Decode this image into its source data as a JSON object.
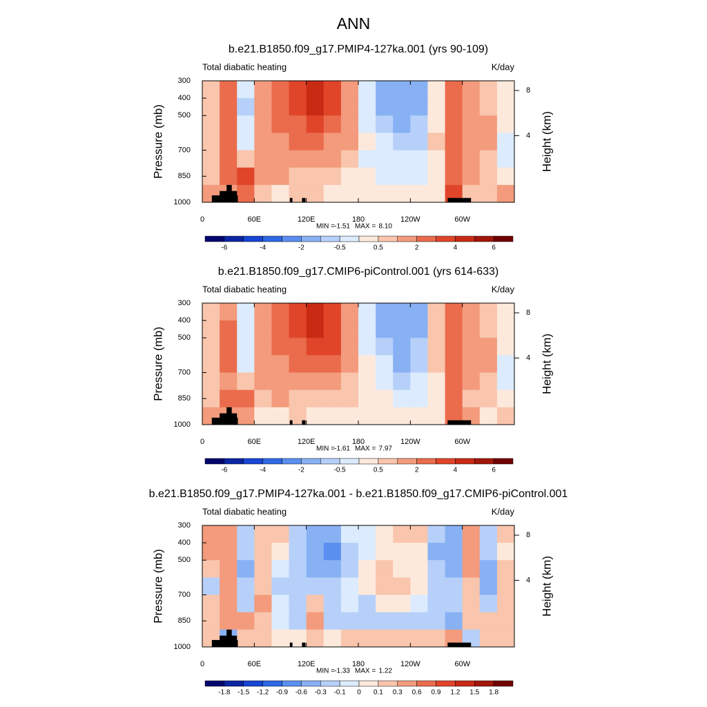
{
  "title": "ANN",
  "chart_data": [
    {
      "type": "contour",
      "title": "b.e21.B1850.f09_g17.PMIP4-127ka.001 (yrs 90-109)",
      "left_label": "Total diabatic heating",
      "right_label": "K/day",
      "ylabel": "Pressure (mb)",
      "y2label": "Height (km)",
      "xlim": [
        0,
        360
      ],
      "ylim": [
        1000,
        300
      ],
      "xticks": [
        0,
        {
          "value": 60,
          "label": "60E"
        },
        {
          "value": 120,
          "label": "120E"
        },
        180,
        {
          "value": 240,
          "label": "120W"
        },
        {
          "value": 300,
          "label": "60W"
        }
      ],
      "yticks": [
        300,
        400,
        500,
        700,
        850,
        1000
      ],
      "y2ticks": [
        4,
        8
      ],
      "lon_edges": [
        0,
        20,
        40,
        60,
        80,
        100,
        120,
        140,
        160,
        180,
        200,
        220,
        240,
        260,
        280,
        300,
        320,
        340,
        360
      ],
      "p_edges": [
        300,
        400,
        500,
        600,
        700,
        800,
        900,
        1000
      ],
      "values": [
        [
          0.7,
          2.2,
          -0.3,
          1.5,
          2.2,
          3,
          4,
          3,
          1.5,
          -0.3,
          -1.2,
          -1.3,
          -1.2,
          0.3,
          2.5,
          1.5,
          0.7,
          0.2
        ],
        [
          0.8,
          2.5,
          -0.6,
          1.8,
          2.5,
          3,
          4.2,
          3.2,
          1.5,
          -0.2,
          -1.3,
          -1.5,
          -1.3,
          0.4,
          2.6,
          1.7,
          0.8,
          0.3
        ],
        [
          0.8,
          2.5,
          -0.5,
          1.7,
          2.2,
          2.5,
          3.5,
          2.5,
          1.2,
          -0.2,
          -0.8,
          -1.2,
          -1,
          0.4,
          2.5,
          1.7,
          1,
          0.3
        ],
        [
          0.7,
          2.2,
          -0.3,
          1.5,
          1.7,
          2,
          2.5,
          1.8,
          1,
          0,
          -0.5,
          -1,
          -0.8,
          0.5,
          2.2,
          1.5,
          1,
          -0.2
        ],
        [
          0.6,
          2,
          0.5,
          1.5,
          1.5,
          1.5,
          1.5,
          1,
          0.6,
          -0.2,
          -0.5,
          -0.5,
          -0.5,
          0.3,
          2,
          1.2,
          0.8,
          -0.3
        ],
        [
          0.8,
          2.2,
          3,
          1,
          1,
          0.6,
          0.7,
          0.5,
          0.4,
          0,
          -0.2,
          -0.3,
          -0.3,
          0,
          2.5,
          1,
          0.6,
          0.3
        ],
        [
          1.5,
          1.2,
          2,
          0.5,
          0.4,
          0.6,
          0.5,
          0.3,
          0.3,
          0.2,
          0.2,
          0.2,
          0.3,
          0.3,
          3,
          0.8,
          0.5,
          1
        ]
      ],
      "stats": {
        "min_label": "MIN =",
        "min": -1.51,
        "max_label": "MAX =",
        "max": {
          "value": 8.1,
          "label": "8.10"
        }
      },
      "colorbar": {
        "levels": [
          -6,
          -5,
          -4,
          -3,
          -2,
          -1,
          -0.5,
          0,
          0.5,
          1,
          2,
          3,
          4,
          5,
          6
        ],
        "label_step": 2,
        "colors": [
          "#03066e",
          "#0b25a3",
          "#1745d4",
          "#2e68e6",
          "#5a8ff0",
          "#88b1f4",
          "#b6d0fa",
          "#dcebfd",
          "#fde9dc",
          "#f9c5ad",
          "#f39b7c",
          "#ea6c4d",
          "#e0452a",
          "#c82a14",
          "#a2160a",
          "#720000"
        ]
      }
    },
    {
      "type": "contour",
      "title": "b.e21.B1850.f09_g17.CMIP6-piControl.001 (yrs 614-633)",
      "left_label": "Total diabatic heating",
      "right_label": "K/day",
      "ylabel": "Pressure (mb)",
      "y2label": "Height (km)",
      "xlim": [
        0,
        360
      ],
      "ylim": [
        1000,
        300
      ],
      "xticks": [
        0,
        {
          "value": 60,
          "label": "60E"
        },
        {
          "value": 120,
          "label": "120E"
        },
        180,
        {
          "value": 240,
          "label": "120W"
        },
        {
          "value": 300,
          "label": "60W"
        }
      ],
      "yticks": [
        300,
        400,
        500,
        700,
        850,
        1000
      ],
      "y2ticks": [
        4,
        8
      ],
      "lon_edges": [
        0,
        20,
        40,
        60,
        80,
        100,
        120,
        140,
        160,
        180,
        200,
        220,
        240,
        260,
        280,
        300,
        320,
        340,
        360
      ],
      "p_edges": [
        300,
        400,
        500,
        600,
        700,
        800,
        900,
        1000
      ],
      "values": [
        [
          0.5,
          1.8,
          -0.2,
          1.3,
          2.2,
          3.2,
          4.2,
          3.3,
          1.4,
          -0.3,
          -1.2,
          -1.3,
          -1.2,
          0.5,
          2.7,
          1.3,
          0.8,
          0.2
        ],
        [
          0.5,
          2,
          -0.4,
          1.6,
          2.5,
          3.3,
          4.5,
          3.8,
          1.5,
          -0.2,
          -1.3,
          -1.5,
          -1.3,
          0.6,
          2.8,
          1.5,
          0.9,
          0.3
        ],
        [
          0.6,
          2.1,
          -0.3,
          1.6,
          2.2,
          2.8,
          3.8,
          3,
          1.3,
          -0.2,
          -0.9,
          -1.3,
          -1,
          0.6,
          2.6,
          1.5,
          1.1,
          0.3
        ],
        [
          0.8,
          2,
          -0.2,
          1.4,
          1.8,
          2.2,
          2.8,
          2.2,
          1,
          0,
          -0.5,
          -1.1,
          -0.9,
          0.6,
          2.4,
          1.4,
          1.2,
          -0.3
        ],
        [
          0.5,
          1.6,
          0.6,
          1.3,
          1.6,
          1.6,
          1.4,
          1.2,
          0.7,
          0,
          -0.5,
          -0.6,
          -0.5,
          0.4,
          2.2,
          1.2,
          0.9,
          -0.4
        ],
        [
          0.6,
          2,
          2.8,
          0.9,
          1,
          0.7,
          0.5,
          0.6,
          0.6,
          0.2,
          0,
          -0.2,
          -0.2,
          0.2,
          2.8,
          0.9,
          0.5,
          0.2
        ],
        [
          1.3,
          1.6,
          1.9,
          0.4,
          0.4,
          0.6,
          0.3,
          0.3,
          0.2,
          0.1,
          0.1,
          0.1,
          0.2,
          0.2,
          2.8,
          1,
          0.4,
          0.9
        ]
      ],
      "stats": {
        "min_label": "MIN =",
        "min": -1.61,
        "max_label": "MAX =",
        "max": 7.97
      },
      "colorbar": {
        "levels": [
          -6,
          -5,
          -4,
          -3,
          -2,
          -1,
          -0.5,
          0,
          0.5,
          1,
          2,
          3,
          4,
          5,
          6
        ],
        "label_step": 2,
        "colors": [
          "#03066e",
          "#0b25a3",
          "#1745d4",
          "#2e68e6",
          "#5a8ff0",
          "#88b1f4",
          "#b6d0fa",
          "#dcebfd",
          "#fde9dc",
          "#f9c5ad",
          "#f39b7c",
          "#ea6c4d",
          "#e0452a",
          "#c82a14",
          "#a2160a",
          "#720000"
        ]
      }
    },
    {
      "type": "contour",
      "title": "b.e21.B1850.f09_g17.PMIP4-127ka.001 - b.e21.B1850.f09_g17.CMIP6-piControl.001",
      "left_label": "Total diabatic heating",
      "right_label": "K/day",
      "ylabel": "Pressure (mb)",
      "y2label": "Height (km)",
      "xlim": [
        0,
        360
      ],
      "ylim": [
        1000,
        300
      ],
      "xticks": [
        0,
        {
          "value": 60,
          "label": "60E"
        },
        {
          "value": 120,
          "label": "120E"
        },
        180,
        {
          "value": 240,
          "label": "120W"
        },
        {
          "value": 300,
          "label": "60W"
        }
      ],
      "yticks": [
        300,
        400,
        500,
        700,
        850,
        1000
      ],
      "y2ticks": [
        4,
        8
      ],
      "lon_edges": [
        0,
        20,
        40,
        60,
        80,
        100,
        120,
        140,
        160,
        180,
        200,
        220,
        240,
        260,
        280,
        300,
        320,
        340,
        360
      ],
      "p_edges": [
        300,
        400,
        500,
        600,
        700,
        800,
        900,
        1000
      ],
      "values": [
        [
          0.3,
          0.5,
          -0.2,
          0.2,
          0.1,
          -0.3,
          -0.5,
          -0.6,
          -0.1,
          -0.1,
          0,
          0.1,
          0.1,
          -0.3,
          -0.4,
          0.3,
          -0.2,
          0.1
        ],
        [
          0.4,
          0.5,
          -0.3,
          0.1,
          0,
          -0.3,
          -0.6,
          -0.9,
          -0.2,
          -0.1,
          0,
          0,
          0,
          -0.4,
          -0.5,
          0.4,
          -0.3,
          0
        ],
        [
          0.2,
          0.4,
          -0.4,
          0.1,
          -0.1,
          -0.3,
          -0.4,
          -0.6,
          -0.2,
          0,
          0.1,
          0,
          0,
          -0.3,
          -0.4,
          0.3,
          -0.4,
          0.1
        ],
        [
          -0.3,
          0.3,
          -0.2,
          0.2,
          -0.2,
          -0.2,
          -0.3,
          -0.3,
          -0.1,
          0,
          0.1,
          0.1,
          0,
          -0.2,
          -0.3,
          0.2,
          -0.5,
          0.1
        ],
        [
          0.1,
          0.5,
          -0.2,
          0.3,
          -0.1,
          -0.2,
          0.2,
          -0.2,
          -0.1,
          -0.2,
          0,
          0,
          -0.1,
          -0.2,
          -0.3,
          0.1,
          -0.3,
          0.1
        ],
        [
          0.2,
          0.3,
          0.4,
          0.2,
          -0.1,
          -0.2,
          0.3,
          -0.2,
          -0.3,
          -0.2,
          -0.2,
          -0.2,
          -0.2,
          -0.2,
          -0.5,
          0.2,
          0.1,
          0.2
        ],
        [
          0.2,
          -0.5,
          0.1,
          0.1,
          0,
          0,
          0.2,
          0,
          0.1,
          0.1,
          0.1,
          0.1,
          0.1,
          0.2,
          0.3,
          -0.2,
          0.1,
          0.1
        ]
      ],
      "stats": {
        "min_label": "MIN =",
        "min": -1.33,
        "max_label": "MAX =",
        "max": 1.22
      },
      "colorbar": {
        "levels": [
          -1.8,
          -1.5,
          -1.2,
          -0.9,
          -0.6,
          -0.3,
          -0.1,
          0,
          0.1,
          0.3,
          0.6,
          0.9,
          1.2,
          1.5,
          1.8
        ],
        "label_step": 1,
        "colors": [
          "#03066e",
          "#0b25a3",
          "#1745d4",
          "#2e68e6",
          "#5a8ff0",
          "#88b1f4",
          "#b6d0fa",
          "#dcebfd",
          "#fde9dc",
          "#f9c5ad",
          "#f39b7c",
          "#ea6c4d",
          "#e0452a",
          "#c82a14",
          "#a2160a",
          "#720000"
        ]
      }
    }
  ]
}
